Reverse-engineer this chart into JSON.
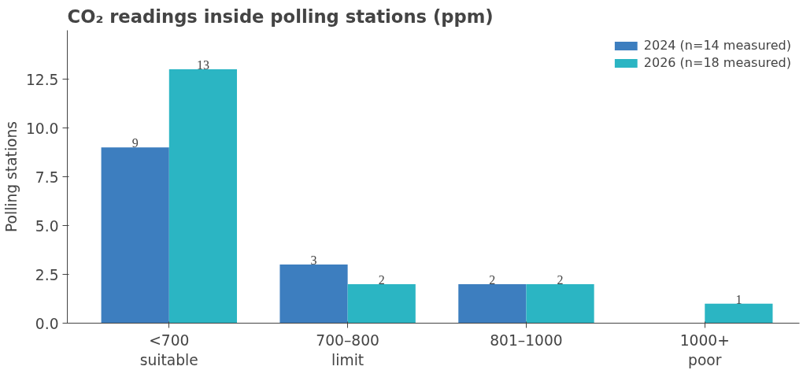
{
  "chart_data": {
    "type": "bar",
    "title": "CO₂ readings inside polling stations (ppm)",
    "ylabel": "Polling stations",
    "categories": [
      "<700\nsuitable",
      "700–800\nlimit",
      "801–1000",
      "1000+\npoor"
    ],
    "series": [
      {
        "name": "2024 (n=14 measured)",
        "color": "#3d7ebf",
        "values": [
          9,
          3,
          2,
          0
        ],
        "value_labels": [
          "9",
          "3",
          "2",
          null
        ]
      },
      {
        "name": "2026 (n=18 measured)",
        "color": "#2bb5c3",
        "values": [
          13,
          2,
          2,
          1
        ],
        "value_labels": [
          "13",
          "2",
          "2",
          "1"
        ]
      }
    ],
    "ylim": [
      0,
      15
    ],
    "yticks": [
      {
        "value": 0,
        "label": "0.0"
      },
      {
        "value": 2.5,
        "label": "2.5"
      },
      {
        "value": 5,
        "label": "5.0"
      },
      {
        "value": 7.5,
        "label": "7.5"
      },
      {
        "value": 10,
        "label": "10.0"
      },
      {
        "value": 12.5,
        "label": "12.5"
      }
    ],
    "grid": false,
    "legend": "top right"
  }
}
